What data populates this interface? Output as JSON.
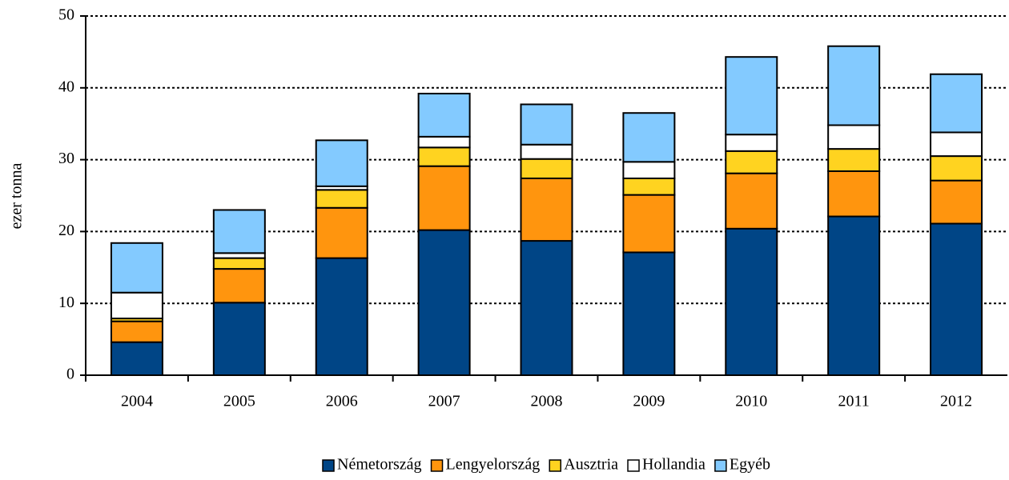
{
  "chart_data": {
    "type": "stacked_bar",
    "categories": [
      "2004",
      "2005",
      "2006",
      "2007",
      "2008",
      "2009",
      "2010",
      "2011",
      "2012"
    ],
    "series": [
      {
        "name": "Németország",
        "color": "#004586",
        "values": [
          4.6,
          10.1,
          16.3,
          20.2,
          18.7,
          17.1,
          20.4,
          22.1,
          21.1
        ]
      },
      {
        "name": "Lengyelország",
        "color": "#ff950e",
        "values": [
          2.9,
          4.7,
          7.0,
          8.9,
          8.7,
          8.0,
          7.7,
          6.3,
          6.0
        ]
      },
      {
        "name": "Ausztria",
        "color": "#ffd320",
        "values": [
          0.4,
          1.5,
          2.5,
          2.6,
          2.7,
          2.3,
          3.1,
          3.1,
          3.4
        ]
      },
      {
        "name": "Hollandia",
        "color": "#ffffff",
        "values": [
          3.6,
          0.7,
          0.5,
          1.5,
          2.0,
          2.3,
          2.3,
          3.3,
          3.3
        ]
      },
      {
        "name": "Egyéb",
        "color": "#83caff",
        "values": [
          6.9,
          6.0,
          6.4,
          6.0,
          5.6,
          6.8,
          10.8,
          11.0,
          8.1
        ]
      }
    ],
    "y_label": "ezer tonna",
    "ylim": [
      0,
      50
    ],
    "yticks": [
      0,
      10,
      20,
      30,
      40,
      50
    ],
    "grid": true,
    "legend": "bottom"
  }
}
